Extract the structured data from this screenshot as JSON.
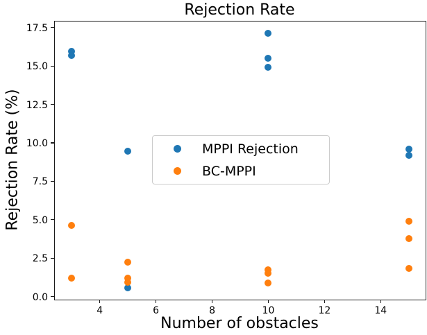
{
  "chart_data": {
    "type": "scatter",
    "title": "Rejection Rate",
    "xlabel": "Number of obstacles",
    "ylabel": "Rejection Rate (%)",
    "xlim": [
      2.4,
      15.6
    ],
    "ylim": [
      -0.2,
      17.9
    ],
    "grid": false,
    "legend_position": "center left inside plot",
    "x_ticks": [
      {
        "v": 4,
        "label": "4"
      },
      {
        "v": 6,
        "label": "6"
      },
      {
        "v": 8,
        "label": "8"
      },
      {
        "v": 10,
        "label": "10"
      },
      {
        "v": 12,
        "label": "12"
      },
      {
        "v": 14,
        "label": "14"
      }
    ],
    "y_ticks": [
      {
        "v": 0,
        "label": "0.0"
      },
      {
        "v": 2.5,
        "label": "2.5"
      },
      {
        "v": 5,
        "label": "5.0"
      },
      {
        "v": 7.5,
        "label": "7.5"
      },
      {
        "v": 10,
        "label": "10.0"
      },
      {
        "v": 12.5,
        "label": "12.5"
      },
      {
        "v": 15,
        "label": "15.0"
      },
      {
        "v": 17.5,
        "label": "17.5"
      }
    ],
    "series": [
      {
        "name": "MPPI Rejection",
        "color": "#1f77b4",
        "points": [
          [
            3,
            15.95
          ],
          [
            3,
            15.7
          ],
          [
            5,
            9.45
          ],
          [
            5,
            0.55
          ],
          [
            10,
            17.15
          ],
          [
            10,
            15.5
          ],
          [
            10,
            14.9
          ],
          [
            15,
            9.6
          ],
          [
            15,
            9.2
          ]
        ]
      },
      {
        "name": "BC-MPPI",
        "color": "#ff7f0e",
        "points": [
          [
            3,
            4.65
          ],
          [
            3,
            1.2
          ],
          [
            5,
            2.25
          ],
          [
            5,
            1.2
          ],
          [
            5,
            0.95
          ],
          [
            10,
            1.75
          ],
          [
            10,
            1.5
          ],
          [
            10,
            0.9
          ],
          [
            15,
            4.9
          ],
          [
            15,
            3.75
          ],
          [
            15,
            1.85
          ]
        ]
      }
    ]
  }
}
